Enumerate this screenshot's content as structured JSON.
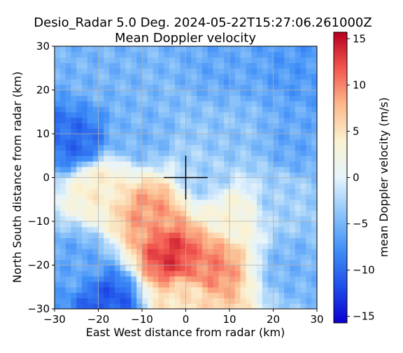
{
  "chart_data": {
    "type": "heatmap",
    "title": "Desio_Radar 5.0 Deg. 2024-05-22T15:27:06.261000Z",
    "subtitle": "Mean Doppler velocity",
    "xlabel": "East West distance from radar (km)",
    "ylabel": "North South distance from radar (km)",
    "xlim": [
      -30,
      30
    ],
    "ylim": [
      -30,
      30
    ],
    "x_ticks": [
      -30,
      -20,
      -10,
      0,
      10,
      20,
      30
    ],
    "y_ticks": [
      -30,
      -20,
      -10,
      0,
      10,
      20,
      30
    ],
    "grid": true,
    "radar_marker": {
      "x": 0,
      "y": 0,
      "arm_km": 5
    },
    "colorbar": {
      "label": "mean Doppler velocity (m/s)",
      "min": -15.7,
      "max": 15.7,
      "ticks": [
        -15,
        -10,
        -5,
        0,
        5,
        10,
        15
      ],
      "colormap": [
        "#0a00d0",
        "#1f4fe8",
        "#3f8ff8",
        "#8cc4fa",
        "#e6f4fb",
        "#fbf2d2",
        "#fcb98c",
        "#f2574f",
        "#b7001e"
      ]
    },
    "field_features": [
      {
        "x": -20,
        "y": 25,
        "value": -5
      },
      {
        "x": 10,
        "y": 25,
        "value": -6
      },
      {
        "x": 25,
        "y": 25,
        "value": -7
      },
      {
        "x": -25,
        "y": 8,
        "value": -10
      },
      {
        "x": -10,
        "y": 10,
        "value": -5
      },
      {
        "x": 10,
        "y": 10,
        "value": -4
      },
      {
        "x": 25,
        "y": 8,
        "value": -6
      },
      {
        "x": 5,
        "y": 0,
        "value": -3
      },
      {
        "x": 22,
        "y": -5,
        "value": -3
      },
      {
        "x": 25,
        "y": -20,
        "value": -5
      },
      {
        "x": -25,
        "y": -20,
        "value": -6
      },
      {
        "x": -20,
        "y": -2,
        "value": 4
      },
      {
        "x": -8,
        "y": -8,
        "value": 9
      },
      {
        "x": -3,
        "y": -18,
        "value": 13
      },
      {
        "x": 5,
        "y": -20,
        "value": 10
      },
      {
        "x": 10,
        "y": -8,
        "value": 3
      },
      {
        "x": -18,
        "y": -28,
        "value": -11
      },
      {
        "x": 0,
        "y": -28,
        "value": 5
      }
    ]
  }
}
